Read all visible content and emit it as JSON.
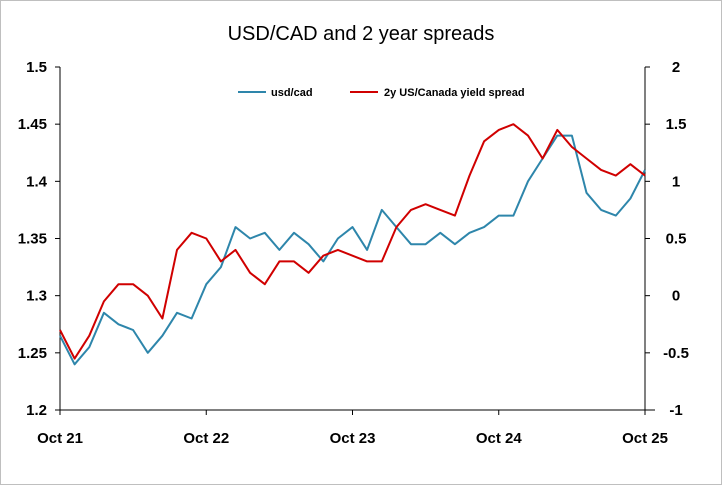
{
  "chart_data": {
    "type": "line",
    "title": "USD/CAD and 2 year spreads",
    "x_ticks": [
      "Oct 21",
      "Oct 22",
      "Oct 23",
      "Oct 24",
      "Oct 25"
    ],
    "x_range": [
      "Oct 21",
      "Oct 25"
    ],
    "y_left": {
      "ticks": [
        "1.2",
        "1.25",
        "1.3",
        "1.35",
        "1.4",
        "1.45",
        "1.5"
      ],
      "range": [
        1.2,
        1.5
      ]
    },
    "y_right": {
      "ticks": [
        "-1",
        "-0.5",
        "0",
        "0.5",
        "1",
        "1.5",
        "2"
      ],
      "range": [
        -1,
        2
      ]
    },
    "grid": false,
    "legend_position": "top",
    "series": [
      {
        "name": "usd/cad",
        "axis": "left",
        "color": "#2E86AB",
        "x": [
          0,
          0.1,
          0.2,
          0.3,
          0.4,
          0.5,
          0.6,
          0.7,
          0.8,
          0.9,
          1.0,
          1.1,
          1.2,
          1.3,
          1.4,
          1.5,
          1.6,
          1.7,
          1.8,
          1.9,
          2.0,
          2.1,
          2.2,
          2.3,
          2.4,
          2.5,
          2.6,
          2.7,
          2.8,
          2.9,
          3.0,
          3.1,
          3.2,
          3.3,
          3.4,
          3.5,
          3.6,
          3.7,
          3.8,
          3.9,
          4.0
        ],
        "values": [
          1.265,
          1.24,
          1.255,
          1.285,
          1.275,
          1.27,
          1.25,
          1.265,
          1.285,
          1.28,
          1.31,
          1.325,
          1.36,
          1.35,
          1.355,
          1.34,
          1.355,
          1.345,
          1.33,
          1.35,
          1.36,
          1.34,
          1.375,
          1.36,
          1.345,
          1.345,
          1.355,
          1.345,
          1.355,
          1.36,
          1.37,
          1.37,
          1.4,
          1.42,
          1.44,
          1.44,
          1.39,
          1.375,
          1.37,
          1.385,
          1.41
        ]
      },
      {
        "name": "2y US/Canada yield spread",
        "axis": "right",
        "color": "#D00000",
        "x": [
          0,
          0.1,
          0.2,
          0.3,
          0.4,
          0.5,
          0.6,
          0.7,
          0.8,
          0.9,
          1.0,
          1.1,
          1.2,
          1.3,
          1.4,
          1.5,
          1.6,
          1.7,
          1.8,
          1.9,
          2.0,
          2.1,
          2.2,
          2.3,
          2.4,
          2.5,
          2.6,
          2.7,
          2.8,
          2.9,
          3.0,
          3.1,
          3.2,
          3.3,
          3.4,
          3.5,
          3.6,
          3.7,
          3.8,
          3.9,
          4.0
        ],
        "values": [
          -0.3,
          -0.55,
          -0.35,
          -0.05,
          0.1,
          0.1,
          0.0,
          -0.2,
          0.4,
          0.55,
          0.5,
          0.3,
          0.4,
          0.2,
          0.1,
          0.3,
          0.3,
          0.2,
          0.35,
          0.4,
          0.35,
          0.3,
          0.3,
          0.6,
          0.75,
          0.8,
          0.75,
          0.7,
          1.05,
          1.35,
          1.45,
          1.5,
          1.4,
          1.2,
          1.45,
          1.3,
          1.2,
          1.1,
          1.05,
          1.15,
          1.05
        ]
      }
    ]
  }
}
